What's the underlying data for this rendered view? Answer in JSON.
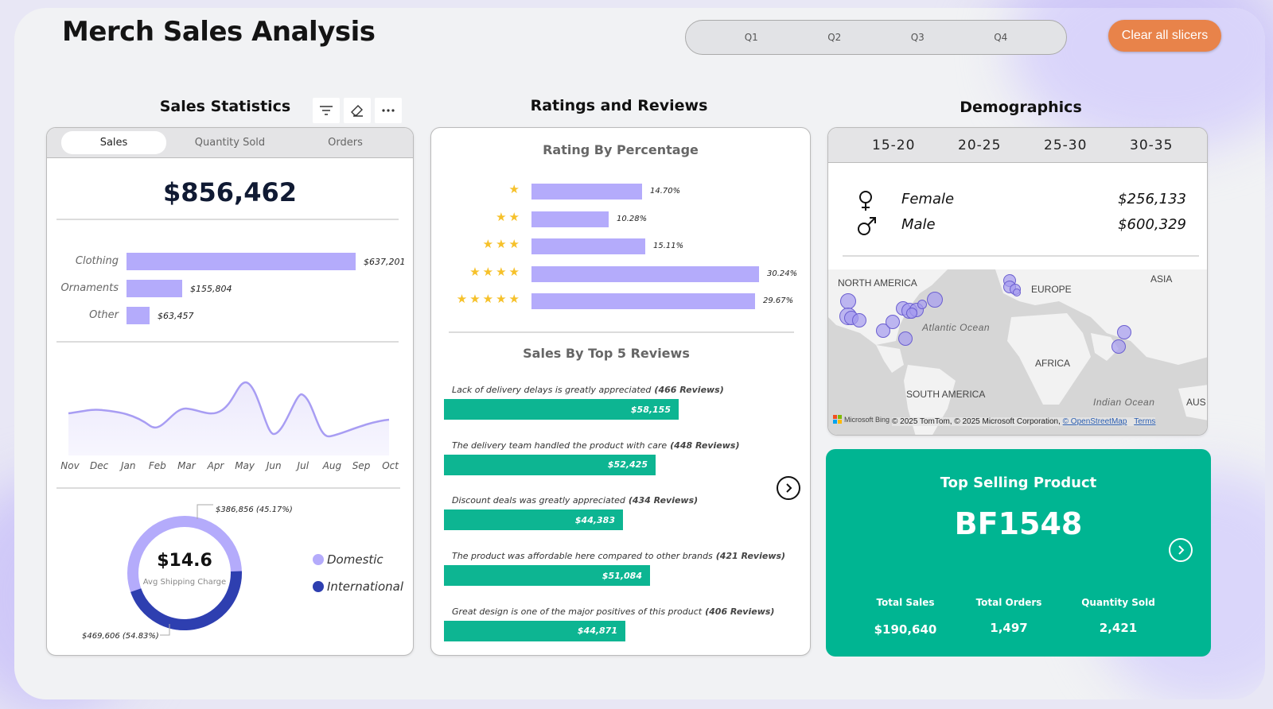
{
  "title": "Merch Sales Analysis",
  "quarters": [
    "Q1",
    "Q2",
    "Q3",
    "Q4"
  ],
  "clear_button": "Clear all slicers",
  "sales_statistics": {
    "title": "Sales Statistics",
    "tabs": [
      "Sales",
      "Quantity Sold",
      "Orders"
    ],
    "active_tab": "Sales",
    "total": "$856,462",
    "categories": [
      {
        "label": "Clothing",
        "value": 637201,
        "display": "$637,201"
      },
      {
        "label": "Ornaments",
        "value": 155804,
        "display": "$155,804"
      },
      {
        "label": "Other",
        "value": 63457,
        "display": "$63,457"
      }
    ],
    "months": [
      "Nov",
      "Dec",
      "Jan",
      "Feb",
      "Mar",
      "Apr",
      "May",
      "Jun",
      "Jul",
      "Aug",
      "Sep",
      "Oct"
    ],
    "donut": {
      "center_value": "$14.6",
      "center_label": "Avg Shipping Charge",
      "international_label": "$386,856 (45.17%)",
      "domestic_label": "$469,606 (54.83%)",
      "legend": [
        "Domestic",
        "International"
      ],
      "colors": {
        "Domestic": "#b4abfb",
        "International": "#2e3fb0"
      }
    }
  },
  "ratings": {
    "title": "Ratings and Reviews",
    "rating_chart_title": "Rating By Percentage",
    "ratings": [
      {
        "stars": 1,
        "pct": 14.7,
        "display": "14.70%"
      },
      {
        "stars": 2,
        "pct": 10.28,
        "display": "10.28%"
      },
      {
        "stars": 3,
        "pct": 15.11,
        "display": "15.11%"
      },
      {
        "stars": 4,
        "pct": 30.24,
        "display": "30.24%"
      },
      {
        "stars": 5,
        "pct": 29.67,
        "display": "29.67%"
      }
    ],
    "reviews_title": "Sales By Top 5 Reviews",
    "reviews": [
      {
        "text": "Lack of delivery delays is greatly appreciated",
        "count": "(466 Reviews)",
        "value": 58155,
        "display": "$58,155"
      },
      {
        "text": "The delivery team handled the product with care",
        "count": "(448 Reviews)",
        "value": 52425,
        "display": "$52,425"
      },
      {
        "text": "Discount deals was greatly appreciated",
        "count": "(434 Reviews)",
        "value": 44383,
        "display": "$44,383"
      },
      {
        "text": "The product was affordable here compared to other brands",
        "count": "(421 Reviews)",
        "value": 51084,
        "display": "$51,084"
      },
      {
        "text": "Great design is one of the major positives of this product",
        "count": "(406 Reviews)",
        "value": 44871,
        "display": "$44,871"
      }
    ]
  },
  "demographics": {
    "title": "Demographics",
    "age_groups": [
      "15-20",
      "20-25",
      "25-30",
      "30-35"
    ],
    "gender": [
      {
        "label": "Female",
        "value": "$256,133",
        "icon": "female-icon"
      },
      {
        "label": "Male",
        "value": "$600,329",
        "icon": "male-icon"
      }
    ],
    "map": {
      "labels": [
        "NORTH AMERICA",
        "EUROPE",
        "ASIA",
        "AFRICA",
        "SOUTH AMERICA",
        "AUS"
      ],
      "oceans": [
        "Atlantic Ocean",
        "Indian Ocean"
      ],
      "attribution": "© 2025 TomTom, © 2025 Microsoft Corporation,",
      "osm": "© OpenStreetMap",
      "terms": "Terms",
      "logo": "Microsoft Bing"
    }
  },
  "top_product": {
    "title": "Top Selling Product",
    "product": "BF1548",
    "stats": [
      {
        "label": "Total Sales",
        "value": "$190,640"
      },
      {
        "label": "Total Orders",
        "value": "1,497"
      },
      {
        "label": "Quantity Sold",
        "value": "2,421"
      }
    ]
  }
}
